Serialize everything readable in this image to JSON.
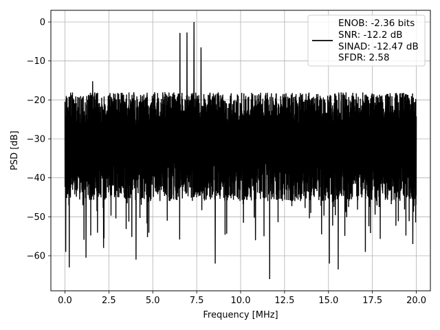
{
  "chart_data": {
    "type": "line",
    "xlabel": "Frequency [MHz]",
    "ylabel": "PSD [dB]",
    "xlim": [
      -0.8,
      20.8
    ],
    "ylim": [
      -69,
      3
    ],
    "grid": true,
    "x_ticks": [
      0,
      2.5,
      5,
      7.5,
      10,
      12.5,
      15,
      17.5,
      20
    ],
    "x_tick_labels": [
      "0.0",
      "2.5",
      "5.0",
      "7.5",
      "10.0",
      "12.5",
      "15.0",
      "17.5",
      "20.0"
    ],
    "y_ticks": [
      0,
      -10,
      -20,
      -30,
      -40,
      -50,
      -60
    ],
    "y_tick_labels": [
      "0",
      "−10",
      "−20",
      "−30",
      "−40",
      "−50",
      "−60"
    ],
    "legend": {
      "placement": "top-right",
      "lines": [
        "ENOB: -2.36 bits",
        "SNR: -12.2 dB",
        "SINAD: -12.47 dB",
        "SFDR: 2.58"
      ]
    },
    "series": [
      {
        "color": "#000000",
        "x_range": [
          0,
          20
        ],
        "noise_band": [
          -44,
          -22
        ],
        "spikes": [
          {
            "x": 0.0,
            "y": -20.5
          },
          {
            "x": 0.05,
            "y": -59
          },
          {
            "x": 0.25,
            "y": -63
          },
          {
            "x": 1.58,
            "y": -15.2
          },
          {
            "x": 1.2,
            "y": -60.5
          },
          {
            "x": 2.2,
            "y": -58
          },
          {
            "x": 4.05,
            "y": -61
          },
          {
            "x": 6.55,
            "y": -2.8
          },
          {
            "x": 6.95,
            "y": -2.7
          },
          {
            "x": 7.35,
            "y": 0
          },
          {
            "x": 7.75,
            "y": -6.5
          },
          {
            "x": 8.55,
            "y": -62
          },
          {
            "x": 10.85,
            "y": -56
          },
          {
            "x": 11.65,
            "y": -66
          },
          {
            "x": 12.5,
            "y": -18.5
          },
          {
            "x": 15.05,
            "y": -62
          },
          {
            "x": 15.55,
            "y": -63.5
          },
          {
            "x": 17.1,
            "y": -59
          },
          {
            "x": 19.8,
            "y": -57
          }
        ]
      }
    ]
  }
}
